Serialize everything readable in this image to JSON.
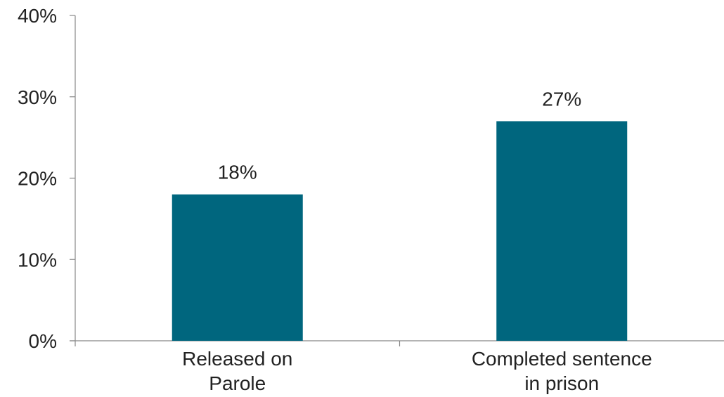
{
  "chart_data": {
    "type": "bar",
    "categories": [
      "Released on Parole",
      "Completed sentence in prison"
    ],
    "category_lines": [
      [
        "Released on",
        "Parole"
      ],
      [
        "Completed sentence",
        "in prison"
      ]
    ],
    "values": [
      18,
      27
    ],
    "value_labels": [
      "18%",
      "27%"
    ],
    "ylim": [
      0,
      40
    ],
    "yticks": [
      0,
      10,
      20,
      30,
      40
    ],
    "ytick_labels": [
      "0%",
      "10%",
      "20%",
      "30%",
      "40%"
    ],
    "title": "",
    "xlabel": "",
    "ylabel": "",
    "grid": false,
    "legend": "none",
    "bar_color": "#00667e",
    "axis_color": "#888888"
  }
}
